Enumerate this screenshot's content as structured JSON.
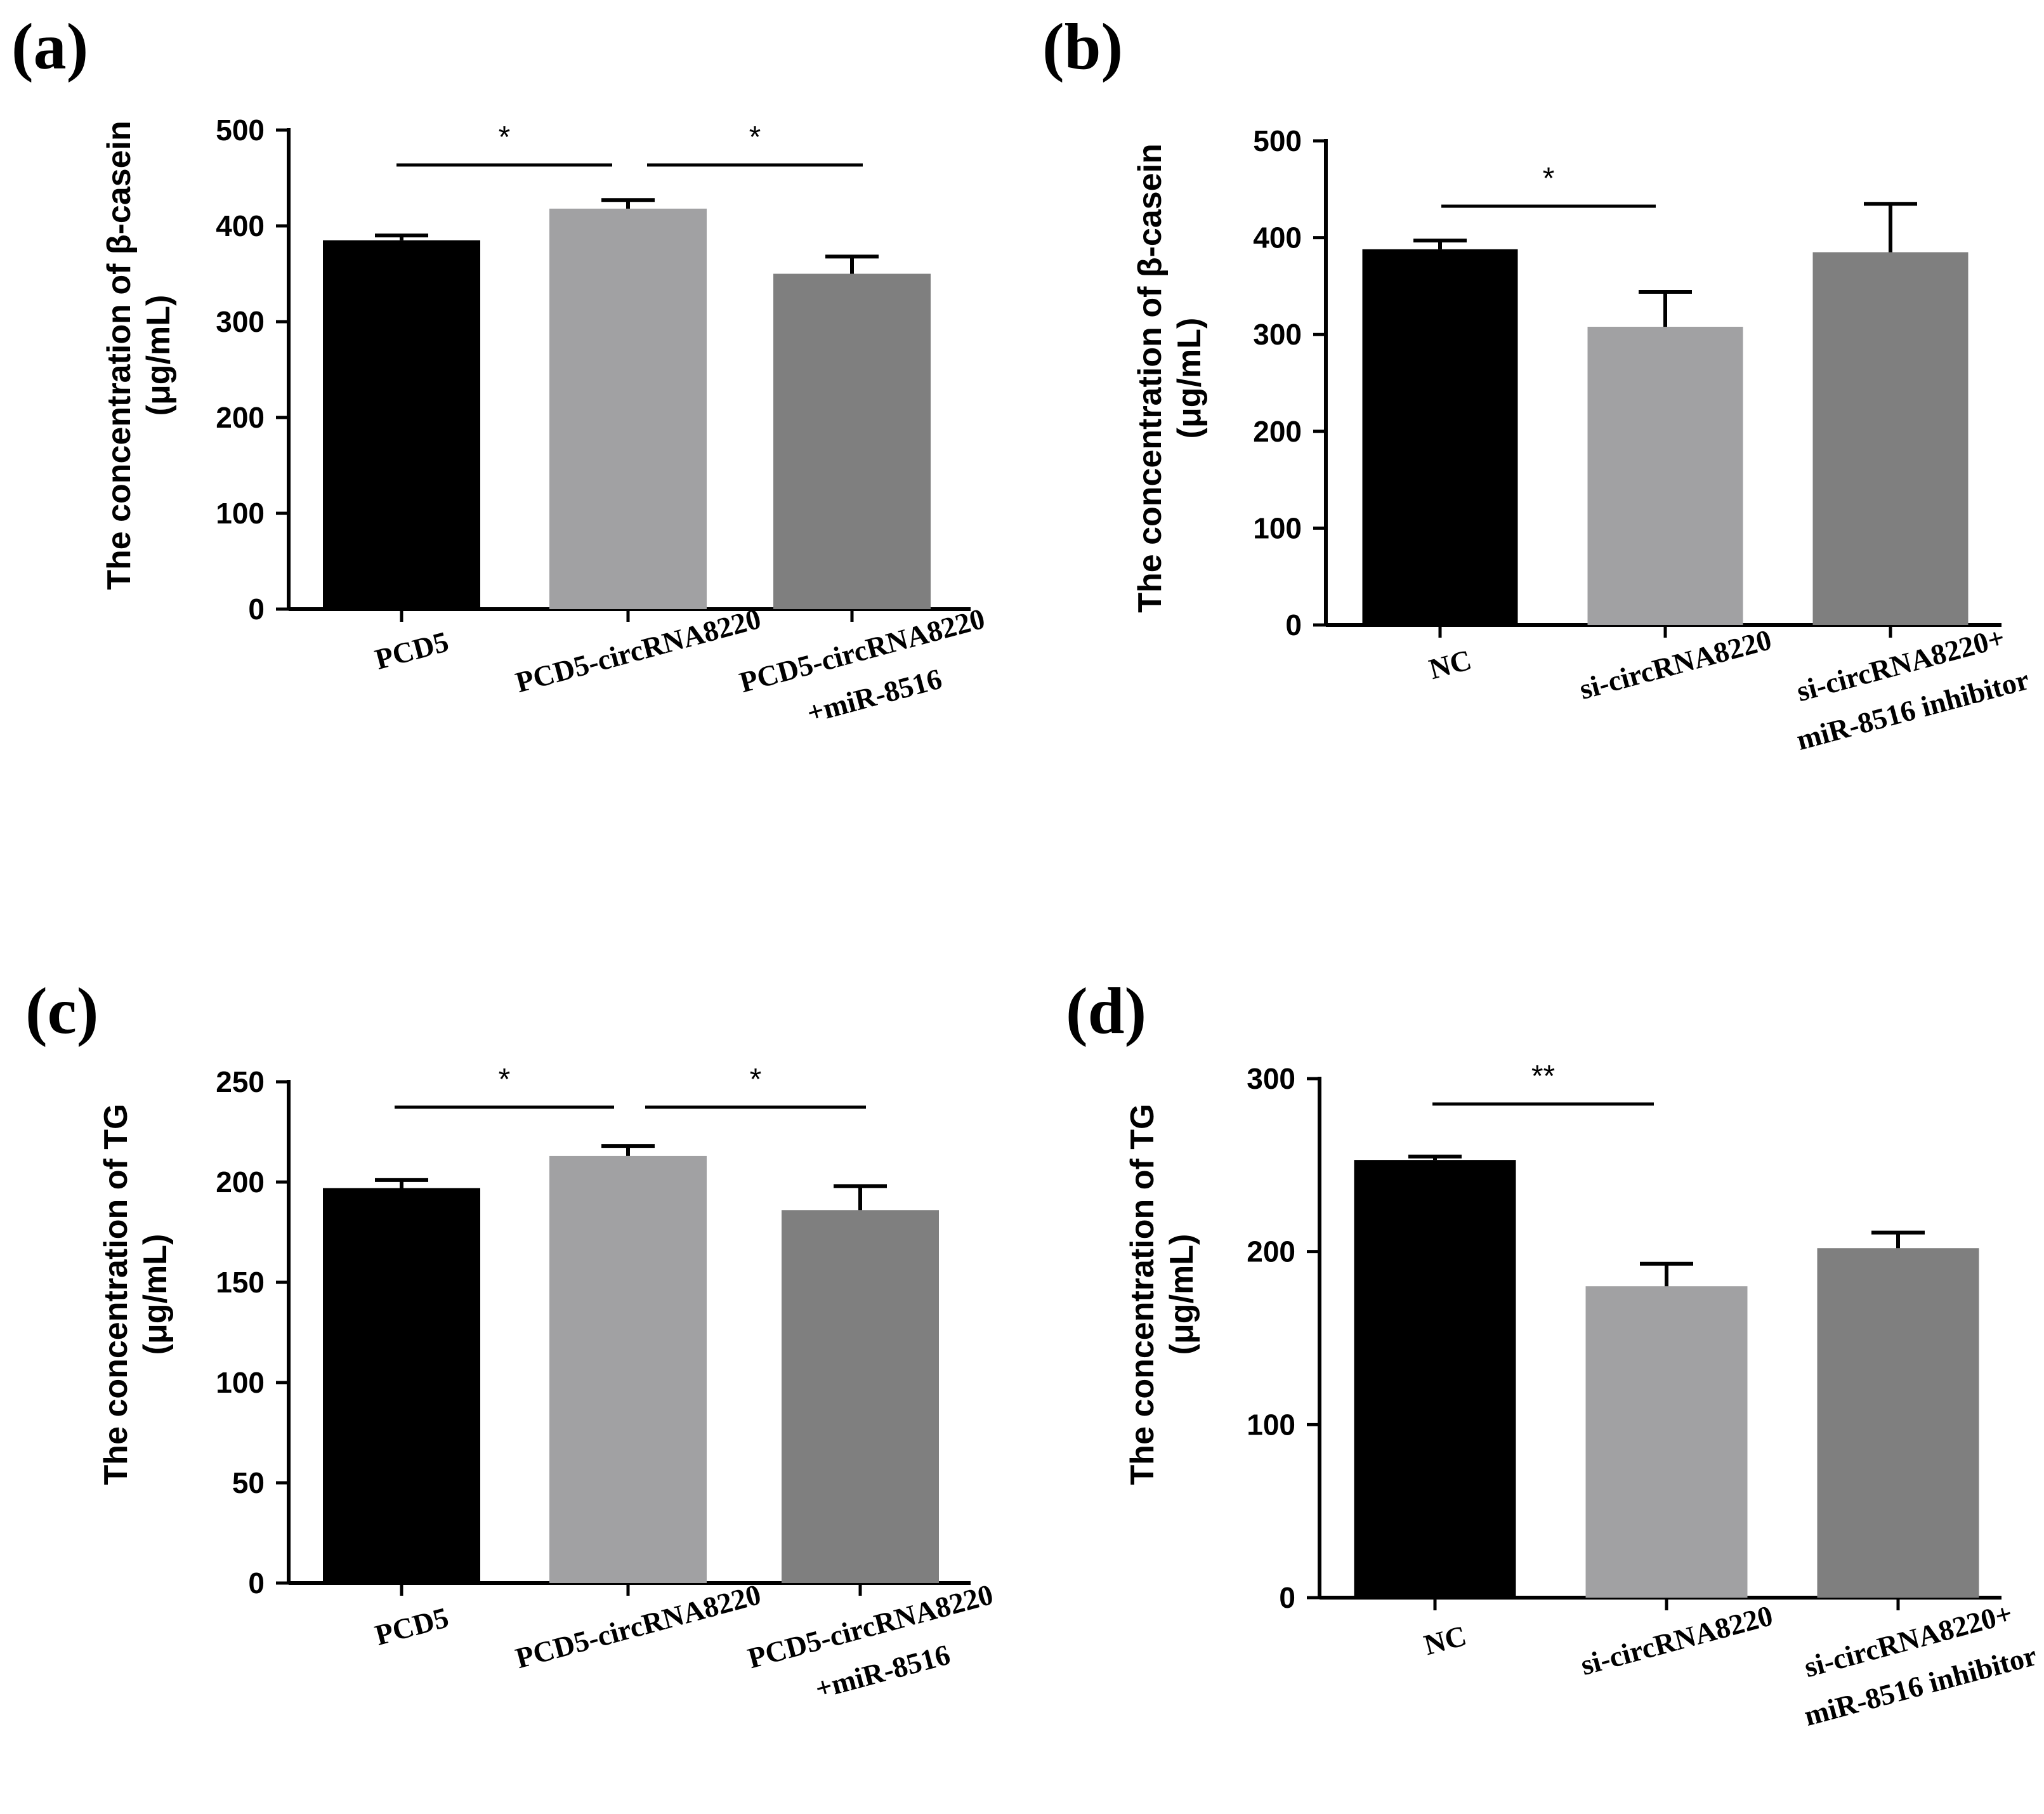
{
  "chart_data": [
    {
      "panel": "(a)",
      "type": "bar",
      "title": "",
      "ylabel": "The concentration of β-casein",
      "yunit": "(μg/mL)",
      "ylim": [
        0,
        500
      ],
      "yticks": [
        0,
        100,
        200,
        300,
        400,
        500
      ],
      "categories": [
        [
          "PCD5"
        ],
        [
          "PCD5-circRNA8220"
        ],
        [
          "PCD5-circRNA8220",
          "+miR-8516"
        ]
      ],
      "values": [
        385,
        418,
        350
      ],
      "errors": [
        5,
        9,
        18
      ],
      "colors": [
        "#000000",
        "#a1a1a3",
        "#7f7f7f"
      ],
      "significance": [
        {
          "from": 0,
          "to": 1,
          "label": "*"
        },
        {
          "from": 1,
          "to": 2,
          "label": "*"
        }
      ]
    },
    {
      "panel": "(b)",
      "type": "bar",
      "title": "",
      "ylabel": "The concentration of β-casein",
      "yunit": "(μg/mL)",
      "ylim": [
        0,
        500
      ],
      "yticks": [
        0,
        100,
        200,
        300,
        400,
        500
      ],
      "categories": [
        [
          "NC"
        ],
        [
          "si-circRNA8220"
        ],
        [
          "si-circRNA8220+",
          "miR-8516 inhibitor"
        ]
      ],
      "values": [
        388,
        308,
        385
      ],
      "errors": [
        9,
        36,
        50
      ],
      "colors": [
        "#000000",
        "#a1a1a3",
        "#7f7f7f"
      ],
      "significance": [
        {
          "from": 0,
          "to": 1,
          "label": "*"
        }
      ]
    },
    {
      "panel": "(c)",
      "type": "bar",
      "title": "",
      "ylabel": "The concentration of TG",
      "yunit": "(μg/mL)",
      "ylim": [
        0,
        250
      ],
      "yticks": [
        0,
        50,
        100,
        150,
        200,
        250
      ],
      "categories": [
        [
          "PCD5"
        ],
        [
          "PCD5-circRNA8220"
        ],
        [
          "PCD5-circRNA8220",
          "+miR-8516"
        ]
      ],
      "values": [
        197,
        213,
        186
      ],
      "errors": [
        4,
        5,
        12
      ],
      "colors": [
        "#000000",
        "#a1a1a3",
        "#7f7f7f"
      ],
      "significance": [
        {
          "from": 0,
          "to": 1,
          "label": "*"
        },
        {
          "from": 1,
          "to": 2,
          "label": "*"
        }
      ]
    },
    {
      "panel": "(d)",
      "type": "bar",
      "title": "",
      "ylabel": "The concentration of TG",
      "yunit": "(μg/mL)",
      "ylim": [
        0,
        300
      ],
      "yticks": [
        0,
        100,
        200,
        300
      ],
      "categories": [
        [
          "NC"
        ],
        [
          "si-circRNA8220"
        ],
        [
          "si-circRNA8220+",
          "miR-8516 inhibitor"
        ]
      ],
      "values": [
        253,
        180,
        202
      ],
      "errors": [
        2,
        13,
        9
      ],
      "colors": [
        "#000000",
        "#a1a1a3",
        "#7f7f7f"
      ],
      "significance": [
        {
          "from": 0,
          "to": 1,
          "label": "**"
        }
      ]
    }
  ]
}
